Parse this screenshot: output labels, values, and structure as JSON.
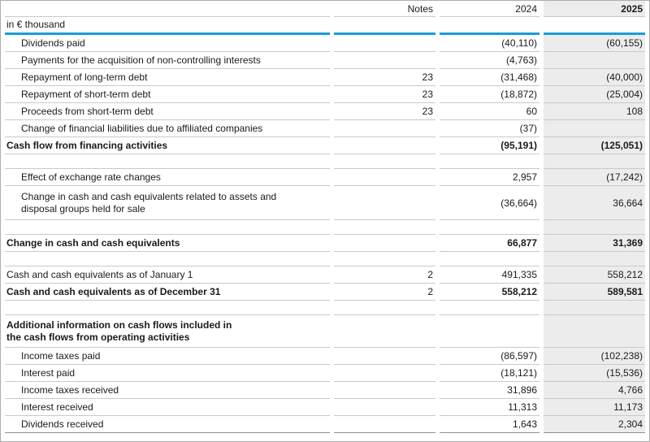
{
  "table": {
    "unit_label": "in € thousand",
    "columns": [
      "Notes",
      "2024",
      "2025"
    ],
    "rows": [
      {
        "type": "data",
        "indent": true,
        "label": "Dividends paid",
        "notes": "",
        "v2024": "(40,110)",
        "v2025": "(60,155)"
      },
      {
        "type": "data",
        "indent": true,
        "label": "Payments for the acquisition of non-controlling interests",
        "notes": "",
        "v2024": "(4,763)",
        "v2025": ""
      },
      {
        "type": "data",
        "indent": true,
        "label": "Repayment of long-term debt",
        "notes": "23",
        "v2024": "(31,468)",
        "v2025": "(40,000)"
      },
      {
        "type": "data",
        "indent": true,
        "label": "Repayment of short-term debt",
        "notes": "23",
        "v2024": "(18,872)",
        "v2025": "(25,004)"
      },
      {
        "type": "data",
        "indent": true,
        "label": "Proceeds from short-term debt",
        "notes": "23",
        "v2024": "60",
        "v2025": "108"
      },
      {
        "type": "data",
        "indent": true,
        "label": "Change of financial liabilities due to affiliated companies",
        "notes": "",
        "v2024": "(37)",
        "v2025": ""
      },
      {
        "type": "total",
        "indent": false,
        "label": "Cash flow from financing activities",
        "notes": "",
        "v2024": "(95,191)",
        "v2025": "(125,051)"
      },
      {
        "type": "spacer",
        "indent": false,
        "label": "",
        "notes": "",
        "v2024": "",
        "v2025": ""
      },
      {
        "type": "data",
        "indent": true,
        "label": "Effect of exchange rate changes",
        "notes": "",
        "v2024": "2,957",
        "v2025": "(17,242)"
      },
      {
        "type": "data",
        "indent": true,
        "lines": 2,
        "label": "Change in cash and cash equivalents related to assets and\ndisposal groups held for sale",
        "notes": "",
        "v2024": "(36,664)",
        "v2025": "36,664"
      },
      {
        "type": "spacer",
        "indent": false,
        "label": "",
        "notes": "",
        "v2024": "",
        "v2025": ""
      },
      {
        "type": "total",
        "indent": false,
        "label": "Change in cash and cash equivalents",
        "notes": "",
        "v2024": "66,877",
        "v2025": "31,369"
      },
      {
        "type": "spacer",
        "indent": false,
        "label": "",
        "notes": "",
        "v2024": "",
        "v2025": ""
      },
      {
        "type": "data",
        "indent": false,
        "label": "Cash and cash equivalents as of January 1",
        "notes": "2",
        "v2024": "491,335",
        "v2025": "558,212"
      },
      {
        "type": "total",
        "indent": false,
        "label": "Cash and cash equivalents as of December 31",
        "notes": "2",
        "v2024": "558,212",
        "v2025": "589,581"
      },
      {
        "type": "spacer",
        "indent": false,
        "label": "",
        "notes": "",
        "v2024": "",
        "v2025": ""
      },
      {
        "type": "section",
        "indent": false,
        "lines": 2,
        "label": "Additional information on cash flows included in\nthe cash flows from operating activities",
        "notes": "",
        "v2024": "",
        "v2025": ""
      },
      {
        "type": "data",
        "indent": true,
        "label": "Income taxes paid",
        "notes": "",
        "v2024": "(86,597)",
        "v2025": "(102,238)"
      },
      {
        "type": "data",
        "indent": true,
        "label": "Interest paid",
        "notes": "",
        "v2024": "(18,121)",
        "v2025": "(15,536)"
      },
      {
        "type": "data",
        "indent": true,
        "label": "Income taxes received",
        "notes": "",
        "v2024": "31,896",
        "v2025": "4,766"
      },
      {
        "type": "data",
        "indent": true,
        "label": "Interest received",
        "notes": "",
        "v2024": "11,313",
        "v2025": "11,173"
      },
      {
        "type": "data",
        "indent": true,
        "label": "Dividends received",
        "notes": "",
        "v2024": "1,643",
        "v2025": "2,304"
      }
    ]
  },
  "colors": {
    "accent_blue": "#189ddb",
    "alt_column_bg": "#ececec"
  }
}
